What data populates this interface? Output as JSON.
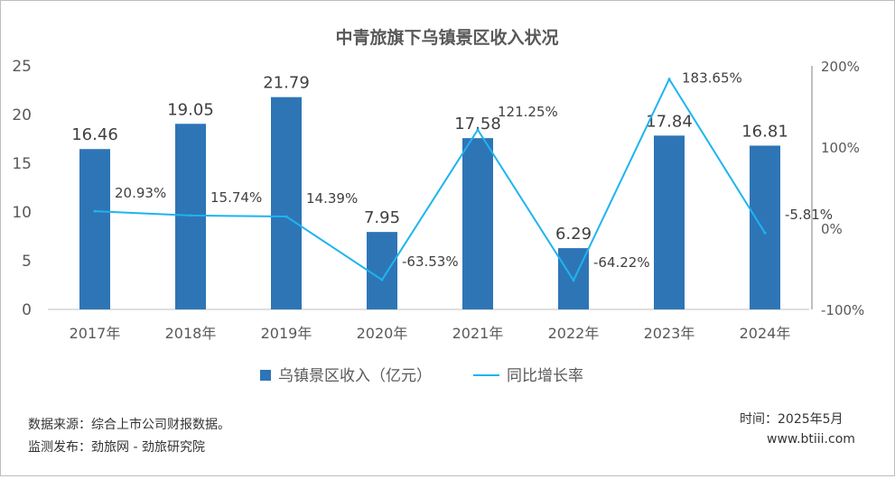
{
  "chart_data": {
    "type": "bar",
    "title": "中青旅旗下乌镇景区收入状况",
    "categories": [
      "2017年",
      "2018年",
      "2019年",
      "2020年",
      "2021年",
      "2022年",
      "2023年",
      "2024年"
    ],
    "series": [
      {
        "name": "乌镇景区收入（亿元）",
        "type": "bar",
        "axis": "left",
        "color": "#2e75b6",
        "values": [
          16.46,
          19.05,
          21.79,
          7.95,
          17.58,
          6.29,
          17.84,
          16.81
        ],
        "labels": [
          "16.46",
          "19.05",
          "21.79",
          "7.95",
          "17.58",
          "6.29",
          "17.84",
          "16.81"
        ]
      },
      {
        "name": "同比增长率",
        "type": "line",
        "axis": "right",
        "color": "#1eb4f0",
        "values": [
          20.93,
          15.74,
          14.39,
          -63.53,
          121.25,
          -64.22,
          183.65,
          -5.81
        ],
        "labels": [
          "20.93%",
          "15.74%",
          "14.39%",
          "-63.53%",
          "121.25%",
          "-64.22%",
          "183.65%",
          "-5.81%"
        ]
      }
    ],
    "left_axis": {
      "min": 0,
      "max": 25,
      "ticks": [
        "0",
        "5",
        "10",
        "15",
        "20",
        "25"
      ]
    },
    "right_axis": {
      "min": -100,
      "max": 200,
      "ticks": [
        "-100%",
        "0%",
        "100%",
        "200%"
      ]
    },
    "grid": false,
    "legend_position": "bottom"
  },
  "footer": {
    "source": "数据来源：综合上市公司财报数据。",
    "monitor": "监测发布：劲旅网 - 劲旅研究院",
    "time": "时间：2025年5月",
    "site": "www.btiii.com"
  }
}
